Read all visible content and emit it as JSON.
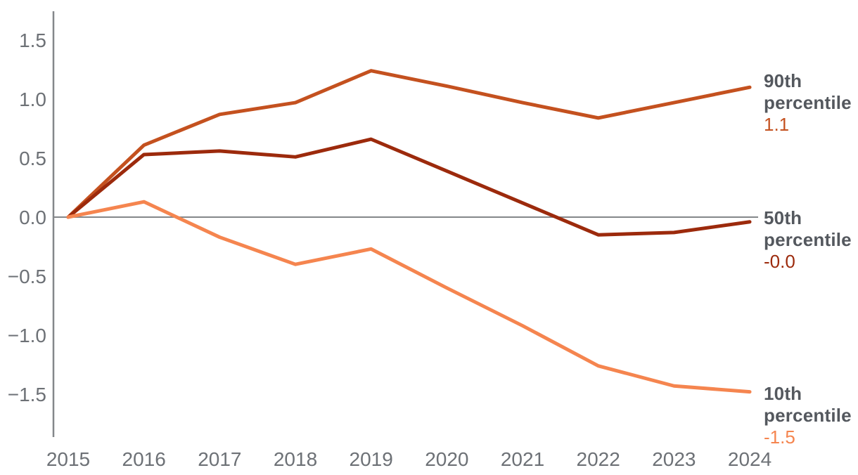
{
  "chart_data": {
    "type": "line",
    "x": [
      2015,
      2016,
      2017,
      2018,
      2019,
      2020,
      2021,
      2022,
      2023,
      2024
    ],
    "x_tick_labels": [
      "2015",
      "2016",
      "2017",
      "2018",
      "2019",
      "2020",
      "2021",
      "2022",
      "2023",
      "2024"
    ],
    "y_ticks": [
      {
        "value": 1.5,
        "label": "1.5"
      },
      {
        "value": 1.0,
        "label": "1.0"
      },
      {
        "value": 0.5,
        "label": "0.5"
      },
      {
        "value": 0.0,
        "label": "0.0"
      },
      {
        "value": -0.5,
        "label": "−0.5"
      },
      {
        "value": -1.0,
        "label": "−1.0"
      },
      {
        "value": -1.5,
        "label": "−1.5"
      }
    ],
    "ylim": [
      -1.75,
      1.75
    ],
    "grid": false,
    "zero_line": true,
    "legend_position": "right-of-line-ends",
    "series": [
      {
        "name": "90th percentile",
        "color": "#c4511f",
        "values": [
          0.0,
          0.61,
          0.87,
          0.97,
          1.24,
          1.11,
          0.97,
          0.84,
          0.97,
          1.1
        ],
        "end_value_label": "1.1"
      },
      {
        "name": "50th percentile",
        "color": "#9c2a0c",
        "values": [
          0.0,
          0.53,
          0.56,
          0.51,
          0.66,
          0.39,
          0.12,
          -0.15,
          -0.13,
          -0.04
        ],
        "end_value_label": "-0.0"
      },
      {
        "name": "10th percentile",
        "color": "#f5854f",
        "values": [
          0.0,
          0.13,
          -0.17,
          -0.4,
          -0.27,
          -0.6,
          -0.92,
          -1.26,
          -1.43,
          -1.48
        ],
        "end_value_label": "-1.5"
      }
    ]
  },
  "colors": {
    "axis_line": "#84878a",
    "zero_line": "#84878a",
    "tick_text": "#6d7176",
    "annotation_text": "#54585e"
  }
}
